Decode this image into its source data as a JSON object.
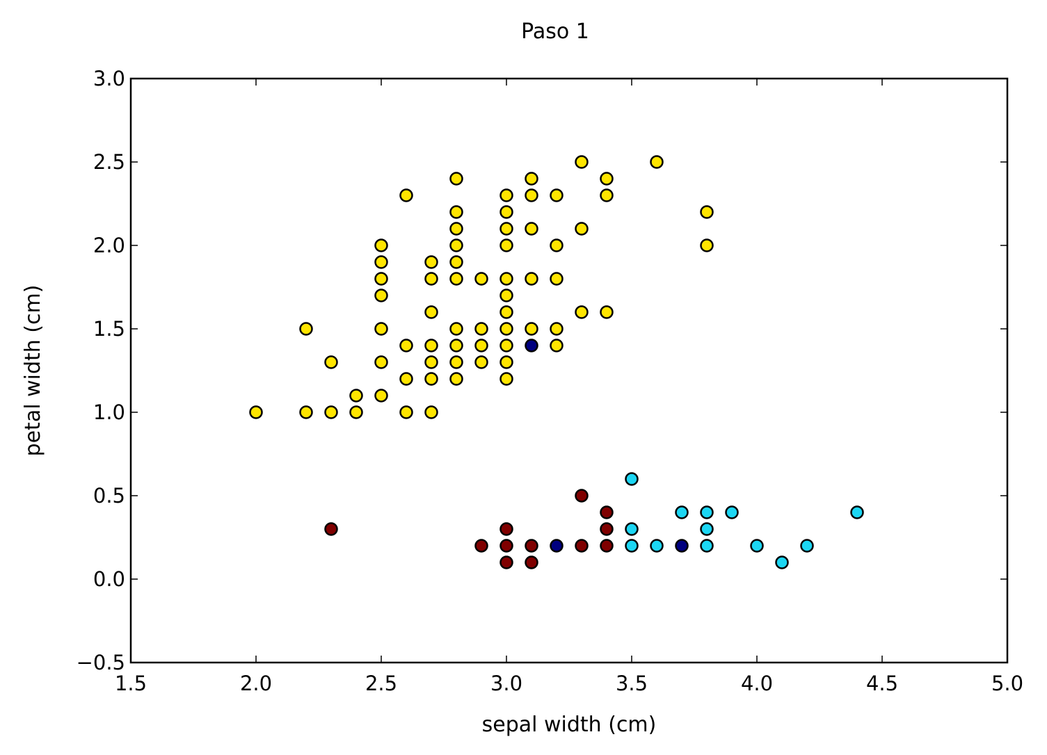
{
  "colors": {
    "yellow": "#FFE500",
    "darkred": "#7F0000",
    "cyan": "#1CD6F3",
    "navy": "#00007F",
    "edge": "#000000"
  },
  "chart_data": {
    "type": "scatter",
    "title": "Paso 1",
    "xlabel": "sepal width (cm)",
    "ylabel": "petal width (cm)",
    "xlim": [
      1.5,
      5.0
    ],
    "ylim": [
      -0.5,
      3.0
    ],
    "xticks": [
      "1.5",
      "2.0",
      "2.5",
      "3.0",
      "3.5",
      "4.0",
      "4.5",
      "5.0"
    ],
    "yticks": [
      "−0.5",
      "0.0",
      "0.5",
      "1.0",
      "1.5",
      "2.0",
      "2.5",
      "3.0"
    ],
    "grid": false,
    "series": [
      {
        "color": "yellow",
        "points": [
          [
            2.0,
            1.0
          ],
          [
            2.2,
            1.0
          ],
          [
            2.2,
            1.5
          ],
          [
            2.3,
            1.0
          ],
          [
            2.3,
            1.3
          ],
          [
            2.4,
            1.0
          ],
          [
            2.4,
            1.1
          ],
          [
            2.5,
            1.1
          ],
          [
            2.5,
            1.3
          ],
          [
            2.5,
            1.5
          ],
          [
            2.5,
            1.7
          ],
          [
            2.5,
            1.8
          ],
          [
            2.5,
            1.9
          ],
          [
            2.5,
            2.0
          ],
          [
            2.6,
            1.0
          ],
          [
            2.6,
            1.2
          ],
          [
            2.6,
            1.4
          ],
          [
            2.6,
            2.3
          ],
          [
            2.7,
            1.0
          ],
          [
            2.7,
            1.2
          ],
          [
            2.7,
            1.3
          ],
          [
            2.7,
            1.4
          ],
          [
            2.7,
            1.6
          ],
          [
            2.7,
            1.8
          ],
          [
            2.7,
            1.9
          ],
          [
            2.8,
            1.2
          ],
          [
            2.8,
            1.3
          ],
          [
            2.8,
            1.4
          ],
          [
            2.8,
            1.5
          ],
          [
            2.8,
            1.8
          ],
          [
            2.8,
            1.9
          ],
          [
            2.8,
            2.0
          ],
          [
            2.8,
            2.1
          ],
          [
            2.8,
            2.2
          ],
          [
            2.8,
            2.4
          ],
          [
            2.9,
            1.3
          ],
          [
            2.9,
            1.4
          ],
          [
            2.9,
            1.5
          ],
          [
            2.9,
            1.8
          ],
          [
            3.0,
            1.2
          ],
          [
            3.0,
            1.3
          ],
          [
            3.0,
            1.4
          ],
          [
            3.0,
            1.5
          ],
          [
            3.0,
            1.6
          ],
          [
            3.0,
            1.7
          ],
          [
            3.0,
            1.8
          ],
          [
            3.0,
            2.0
          ],
          [
            3.0,
            2.1
          ],
          [
            3.0,
            2.2
          ],
          [
            3.0,
            2.3
          ],
          [
            3.1,
            1.5
          ],
          [
            3.1,
            1.8
          ],
          [
            3.1,
            2.1
          ],
          [
            3.1,
            2.3
          ],
          [
            3.1,
            2.4
          ],
          [
            3.2,
            1.4
          ],
          [
            3.2,
            1.5
          ],
          [
            3.2,
            1.8
          ],
          [
            3.2,
            2.0
          ],
          [
            3.2,
            2.3
          ],
          [
            3.3,
            1.6
          ],
          [
            3.3,
            2.1
          ],
          [
            3.3,
            2.5
          ],
          [
            3.4,
            1.6
          ],
          [
            3.4,
            2.3
          ],
          [
            3.4,
            2.4
          ],
          [
            3.6,
            2.5
          ],
          [
            3.8,
            2.0
          ],
          [
            3.8,
            2.2
          ]
        ]
      },
      {
        "color": "darkred",
        "points": [
          [
            2.3,
            0.3
          ],
          [
            2.9,
            0.2
          ],
          [
            3.0,
            0.1
          ],
          [
            3.0,
            0.2
          ],
          [
            3.0,
            0.3
          ],
          [
            3.1,
            0.1
          ],
          [
            3.1,
            0.2
          ],
          [
            3.3,
            0.2
          ],
          [
            3.3,
            0.5
          ],
          [
            3.4,
            0.2
          ],
          [
            3.4,
            0.3
          ],
          [
            3.4,
            0.4
          ]
        ]
      },
      {
        "color": "cyan",
        "points": [
          [
            3.5,
            0.2
          ],
          [
            3.5,
            0.3
          ],
          [
            3.5,
            0.6
          ],
          [
            3.6,
            0.2
          ],
          [
            3.7,
            0.4
          ],
          [
            3.8,
            0.2
          ],
          [
            3.8,
            0.3
          ],
          [
            3.8,
            0.4
          ],
          [
            3.9,
            0.4
          ],
          [
            4.0,
            0.2
          ],
          [
            4.1,
            0.1
          ],
          [
            4.2,
            0.2
          ],
          [
            4.4,
            0.4
          ]
        ]
      },
      {
        "color": "navy",
        "points": [
          [
            3.1,
            1.4
          ],
          [
            3.2,
            0.2
          ],
          [
            3.7,
            0.2
          ]
        ]
      }
    ]
  }
}
